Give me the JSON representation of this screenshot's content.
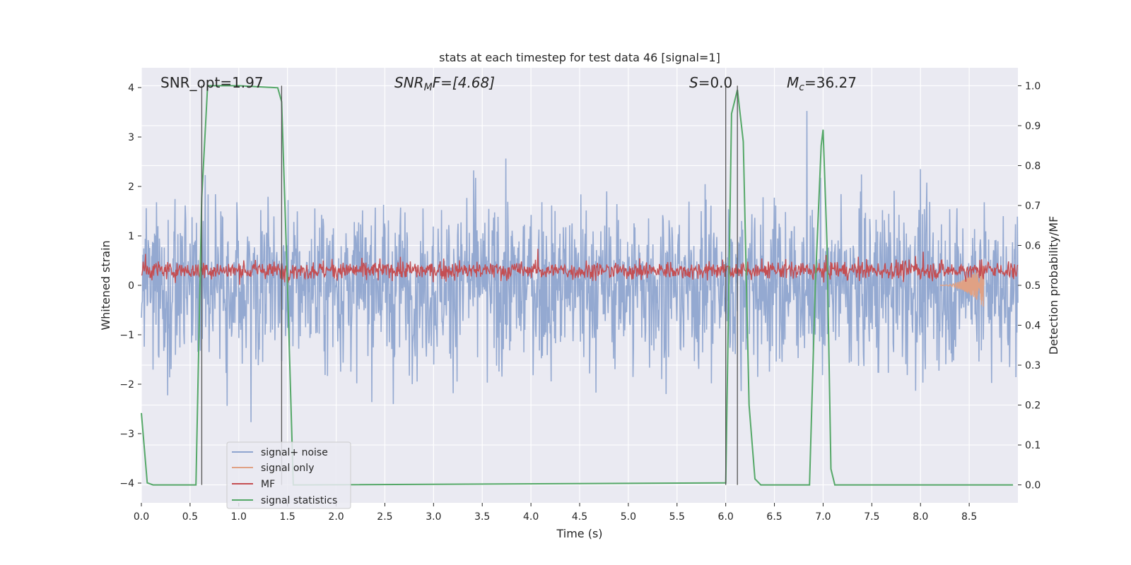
{
  "chart_data": {
    "type": "line",
    "title": "stats at each timestep for test data 46 [signal=1]",
    "xlabel": "Time (s)",
    "ylabel": "Whitened strain",
    "y2label": "Detection probability/MF",
    "xlim": [
      0.0,
      9.0
    ],
    "ylim": [
      -4.4,
      4.4
    ],
    "y2lim": [
      -0.045,
      1.045
    ],
    "xticks": [
      0.0,
      0.5,
      1.0,
      1.5,
      2.0,
      2.5,
      3.0,
      3.5,
      4.0,
      4.5,
      5.0,
      5.5,
      6.0,
      6.5,
      7.0,
      7.5,
      8.0,
      8.5
    ],
    "xtick_labels": [
      "0.0",
      "0.5",
      "1.0",
      "1.5",
      "2.0",
      "2.5",
      "3.0",
      "3.5",
      "4.0",
      "4.5",
      "5.0",
      "5.5",
      "6.0",
      "6.5",
      "7.0",
      "7.5",
      "8.0",
      "8.5"
    ],
    "yticks": [
      -4,
      -3,
      -2,
      -1,
      0,
      1,
      2,
      3,
      4
    ],
    "ytick_labels": [
      "−4",
      "−3",
      "−2",
      "−1",
      "0",
      "1",
      "2",
      "3",
      "4"
    ],
    "y2ticks": [
      0.0,
      0.1,
      0.2,
      0.3,
      0.4,
      0.5,
      0.6,
      0.7,
      0.8,
      0.9,
      1.0
    ],
    "y2tick_labels": [
      "0.0",
      "0.1",
      "0.2",
      "0.3",
      "0.4",
      "0.5",
      "0.6",
      "0.7",
      "0.8",
      "0.9",
      "1.0"
    ],
    "grid": true,
    "legend_position": "lower-left",
    "annotations": {
      "snr_opt": "SNR_opt=1.97",
      "snr_mf_label": "SNR",
      "snr_mf_sub": "M",
      "snr_mf_rest": "F=[4.68]",
      "s_label": "S",
      "s_rest": "=0.0",
      "mc_label": "M",
      "mc_sub": "c",
      "mc_rest": "=36.27"
    },
    "vlines": [
      0.62,
      1.44,
      6.0,
      6.12
    ],
    "series": [
      {
        "name": "signal+ noise",
        "color": "#8fa5cf",
        "axis": "left",
        "kind": "noise",
        "x_range": [
          0.0,
          9.0
        ],
        "amplitude_range": [
          -4.0,
          4.0
        ]
      },
      {
        "name": "signal only",
        "color": "#e0a184",
        "axis": "left",
        "kind": "chirp",
        "x_range": [
          8.2,
          8.65
        ],
        "peak_amplitude": 0.45
      },
      {
        "name": "MF",
        "color": "#c44e52",
        "axis": "left",
        "kind": "band",
        "x_range": [
          0.0,
          9.0
        ],
        "typical_range": [
          0.0,
          0.7
        ]
      },
      {
        "name": "signal statistics",
        "color": "#55a868",
        "axis": "right",
        "kind": "line",
        "x": [
          0.0,
          0.06,
          0.12,
          0.56,
          0.62,
          0.68,
          0.74,
          1.0,
          1.4,
          1.44,
          1.5,
          1.56,
          1.62,
          6.0,
          6.06,
          6.12,
          6.18,
          6.24,
          6.3,
          6.36,
          6.4,
          6.86,
          6.92,
          6.98,
          7.0,
          7.04,
          7.08,
          7.12,
          8.95
        ],
        "y": [
          0.18,
          0.005,
          0.0,
          0.0,
          0.72,
          1.0,
          1.0,
          1.0,
          0.995,
          0.96,
          0.5,
          0.0,
          0.0,
          0.005,
          0.93,
          0.99,
          0.86,
          0.2,
          0.015,
          0.0,
          0.0,
          0.0,
          0.5,
          0.85,
          0.89,
          0.6,
          0.04,
          0.0,
          0.0
        ]
      }
    ]
  }
}
